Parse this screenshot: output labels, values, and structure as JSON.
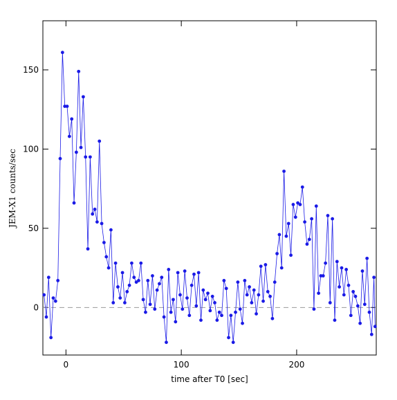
{
  "chart_data": {
    "type": "line",
    "xlabel": "time after T0 [sec]",
    "ylabel": "JEM-X1 counts/sec",
    "xlim": [
      -20,
      269
    ],
    "ylim": [
      -30,
      181
    ],
    "xticks": [
      0,
      100,
      200
    ],
    "yticks": [
      0,
      50,
      100,
      150
    ],
    "reference_line": 0,
    "series": [
      {
        "name": "JEM-X1",
        "color": "#1a1ae6",
        "x": [
          -19,
          -17,
          -15,
          -13,
          -11,
          -9,
          -7,
          -5,
          -3,
          -1,
          1,
          3,
          5,
          7,
          9,
          11,
          13,
          15,
          17,
          19,
          21,
          23,
          25,
          27,
          29,
          31,
          33,
          35,
          37,
          39,
          41,
          43,
          45,
          47,
          49,
          51,
          53,
          55,
          57,
          59,
          61,
          63,
          65,
          67,
          69,
          71,
          73,
          75,
          77,
          79,
          81,
          83,
          85,
          87,
          89,
          91,
          93,
          95,
          97,
          99,
          101,
          103,
          105,
          107,
          109,
          111,
          113,
          115,
          117,
          119,
          121,
          123,
          125,
          127,
          129,
          131,
          133,
          135,
          137,
          139,
          141,
          143,
          145,
          147,
          149,
          151,
          153,
          155,
          157,
          159,
          161,
          163,
          165,
          167,
          169,
          171,
          173,
          175,
          177,
          179,
          181,
          183,
          185,
          187,
          189,
          191,
          193,
          195,
          197,
          199,
          201,
          203,
          205,
          207,
          209,
          211,
          213,
          215,
          217,
          219,
          221,
          223,
          225,
          227,
          229,
          231,
          233,
          235,
          237,
          239,
          241,
          243,
          245,
          247,
          249,
          251,
          253,
          255,
          257,
          259,
          261,
          263,
          265,
          267,
          268
        ],
        "values": [
          8,
          -6,
          19,
          -19,
          6,
          4,
          17,
          94,
          161,
          127,
          127,
          108,
          119,
          66,
          98,
          149,
          101,
          133,
          95,
          37,
          95,
          59,
          62,
          54,
          105,
          53,
          41,
          32,
          25,
          49,
          3,
          28,
          13,
          6,
          22,
          3,
          10,
          14,
          28,
          19,
          16,
          17,
          28,
          5,
          -3,
          17,
          2,
          20,
          -1,
          11,
          15,
          19,
          -6,
          -22,
          24,
          -3,
          5,
          -9,
          22,
          8,
          -1,
          23,
          6,
          -5,
          14,
          21,
          1,
          22,
          -8,
          11,
          5,
          9,
          -2,
          7,
          3,
          -8,
          -3,
          -5,
          17,
          12,
          -19,
          -5,
          -22,
          -3,
          16,
          -1,
          -10,
          17,
          8,
          13,
          3,
          11,
          -4,
          8,
          26,
          4,
          27,
          10,
          7,
          -7,
          16,
          34,
          46,
          25,
          86,
          45,
          53,
          33,
          65,
          57,
          66,
          65,
          76,
          54,
          40,
          43,
          56,
          -1,
          64,
          9,
          20,
          20,
          28,
          58,
          3,
          56,
          -8,
          29,
          13,
          25,
          8,
          24,
          14,
          -5,
          10,
          7,
          1,
          -10,
          23,
          2,
          31,
          -3,
          -17,
          19,
          -12
        ]
      }
    ]
  }
}
